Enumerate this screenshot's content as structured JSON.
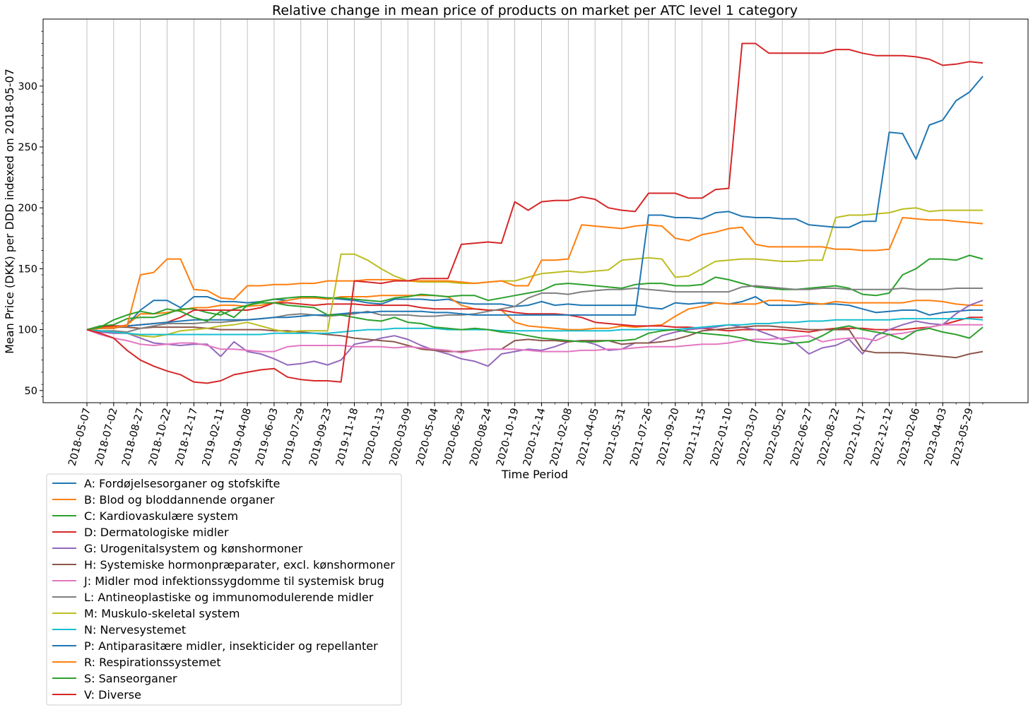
{
  "chart_data": {
    "type": "line",
    "title": "Relative change in mean price of products on market per ATC level 1 category",
    "xlabel": "Time Period",
    "ylabel": "Mean Price (DKK) per DDD indexed on 2018-05-07",
    "ylim": [
      40,
      355
    ],
    "yticks": [
      50,
      100,
      150,
      200,
      250,
      300
    ],
    "grid": "vertical",
    "legend_position": "below-left",
    "x_ticks": [
      "2018-05-07",
      "2018-07-02",
      "2018-08-27",
      "2018-10-22",
      "2018-12-17",
      "2019-02-11",
      "2019-04-08",
      "2019-06-03",
      "2019-07-29",
      "2019-09-23",
      "2019-11-18",
      "2020-01-13",
      "2020-03-09",
      "2020-05-04",
      "2020-06-29",
      "2020-08-24",
      "2020-10-19",
      "2020-12-14",
      "2021-02-08",
      "2021-04-05",
      "2021-05-31",
      "2021-07-26",
      "2021-09-20",
      "2021-11-15",
      "2022-01-10",
      "2022-03-07",
      "2022-05-02",
      "2022-06-27",
      "2022-08-22",
      "2022-10-17",
      "2022-12-12",
      "2023-02-06",
      "2023-04-03",
      "2023-05-29"
    ],
    "x_index": [
      0,
      2,
      4,
      6,
      8,
      10,
      12,
      14,
      16,
      18,
      20,
      22,
      24,
      26,
      28,
      30,
      32,
      34,
      36,
      38,
      40,
      42,
      44,
      46,
      48,
      50,
      52,
      54,
      56,
      58,
      60,
      62,
      64,
      66
    ],
    "x_points": [
      0,
      1,
      2,
      3,
      4,
      5,
      6,
      7,
      8,
      9,
      10,
      11,
      12,
      13,
      14,
      15,
      16,
      17,
      18,
      19,
      20,
      21,
      22,
      23,
      24,
      25,
      26,
      27,
      28,
      29,
      30,
      31,
      32,
      33,
      34,
      35,
      36,
      37,
      38,
      39,
      40,
      41,
      42,
      43,
      44,
      45,
      46,
      47,
      48,
      49,
      50,
      51,
      52,
      53,
      54,
      55,
      56,
      57,
      58,
      59,
      60,
      61,
      62,
      63,
      64,
      65,
      66,
      67
    ],
    "series": [
      {
        "name": "A: Fordøjelsesorganer og stofskifte",
        "color": "#1f77b4",
        "values": [
          100,
          101,
          101,
          104,
          116,
          124,
          124,
          118,
          127,
          127,
          123,
          123,
          122,
          123,
          125,
          124,
          126,
          127,
          126,
          125,
          124,
          122,
          121,
          125,
          125,
          125,
          124,
          125,
          122,
          121,
          121,
          121,
          119,
          120,
          123,
          120,
          121,
          120,
          120,
          120,
          120,
          120,
          118,
          117,
          122,
          121,
          122,
          122,
          121,
          123,
          127,
          120,
          120,
          120,
          121,
          121,
          121,
          120,
          117,
          114,
          115,
          116,
          116,
          112,
          114,
          115,
          116,
          116
        ]
      },
      {
        "name": "B: Blod og bloddannende organer",
        "color": "#ff7f0e",
        "values": [
          100,
          101,
          101,
          104,
          113,
          113,
          114,
          116,
          118,
          118,
          120,
          120,
          119,
          120,
          122,
          124,
          126,
          126,
          125,
          127,
          127,
          127,
          128,
          128,
          128,
          128,
          128,
          127,
          120,
          117,
          116,
          116,
          106,
          103,
          102,
          101,
          100,
          100,
          101,
          101,
          103,
          102,
          103,
          104,
          111,
          117,
          119,
          122,
          121,
          121,
          121,
          124,
          124,
          123,
          122,
          121,
          123,
          122,
          122,
          122,
          122,
          122,
          124,
          124,
          123,
          121,
          120,
          120
        ]
      },
      {
        "name": "C: Kardiovaskulære system",
        "color": "#2ca02c",
        "values": [
          100,
          103,
          104,
          109,
          110,
          110,
          113,
          117,
          117,
          114,
          112,
          117,
          120,
          123,
          125,
          126,
          127,
          127,
          126,
          126,
          125,
          124,
          123,
          126,
          127,
          129,
          128,
          127,
          128,
          128,
          124,
          126,
          128,
          130,
          132,
          137,
          138,
          137,
          136,
          135,
          134,
          137,
          138,
          138,
          136,
          136,
          137,
          143,
          141,
          138,
          135,
          134,
          133,
          133,
          134,
          135,
          136,
          134,
          129,
          128,
          130,
          145,
          150,
          158,
          158,
          157,
          161,
          158
        ]
      },
      {
        "name": "D: Dermatologiske midler",
        "color": "#d62728",
        "values": [
          100,
          102,
          103,
          103,
          104,
          105,
          106,
          110,
          116,
          116,
          116,
          116,
          116,
          118,
          122,
          122,
          121,
          120,
          121,
          121,
          121,
          120,
          120,
          120,
          120,
          118,
          117,
          117,
          117,
          117,
          116,
          116,
          114,
          113,
          113,
          113,
          112,
          110,
          106,
          105,
          104,
          103,
          103,
          103,
          102,
          102,
          101,
          100,
          99,
          100,
          100,
          100,
          100,
          99,
          98,
          100,
          101,
          101,
          101,
          100,
          100,
          100,
          101,
          102,
          104,
          107,
          110,
          110
        ]
      },
      {
        "name": "G: Urogenitalsystem og kønshormoner",
        "color": "#9467bd",
        "values": [
          100,
          98,
          97,
          97,
          93,
          89,
          88,
          87,
          88,
          88,
          78,
          90,
          82,
          80,
          76,
          71,
          72,
          74,
          71,
          75,
          88,
          90,
          93,
          95,
          92,
          87,
          83,
          80,
          76,
          74,
          70,
          80,
          82,
          84,
          83,
          86,
          90,
          91,
          88,
          83,
          84,
          89,
          89,
          95,
          98,
          100,
          101,
          102,
          104,
          102,
          100,
          96,
          92,
          89,
          80,
          85,
          87,
          92,
          80,
          95,
          100,
          104,
          107,
          105,
          104,
          113,
          120,
          124
        ]
      },
      {
        "name": "H: Systemiske hormonpræparater, excl. kønshormoner",
        "color": "#8c564b",
        "values": [
          100,
          101,
          102,
          102,
          101,
          102,
          102,
          102,
          102,
          101,
          100,
          100,
          100,
          100,
          99,
          99,
          98,
          97,
          96,
          95,
          93,
          92,
          91,
          90,
          87,
          84,
          83,
          82,
          82,
          83,
          84,
          84,
          91,
          92,
          91,
          91,
          90,
          91,
          91,
          91,
          88,
          89,
          89,
          90,
          92,
          95,
          99,
          100,
          101,
          102,
          103,
          103,
          102,
          101,
          100,
          100,
          100,
          100,
          83,
          81,
          81,
          81,
          80,
          79,
          78,
          77,
          80,
          82
        ]
      },
      {
        "name": "J: Midler mod infektionssygdomme til systemisk brug",
        "color": "#e377c2",
        "values": [
          100,
          96,
          93,
          91,
          88,
          87,
          88,
          89,
          89,
          87,
          84,
          84,
          83,
          82,
          82,
          86,
          87,
          87,
          87,
          87,
          86,
          86,
          86,
          85,
          86,
          85,
          84,
          83,
          81,
          83,
          84,
          84,
          84,
          83,
          82,
          82,
          82,
          83,
          83,
          84,
          84,
          85,
          86,
          86,
          86,
          87,
          88,
          88,
          89,
          91,
          92,
          92,
          93,
          94,
          95,
          90,
          92,
          93,
          93,
          91,
          96,
          97,
          99,
          102,
          104,
          104,
          104,
          104
        ]
      },
      {
        "name": "L: Antineoplastiske og immunomodulerende midler",
        "color": "#7f7f7f",
        "values": [
          100,
          99,
          99,
          98,
          101,
          103,
          105,
          105,
          105,
          106,
          106,
          107,
          108,
          109,
          110,
          112,
          113,
          112,
          111,
          112,
          113,
          115,
          112,
          112,
          112,
          111,
          111,
          112,
          112,
          113,
          115,
          117,
          119,
          126,
          130,
          130,
          129,
          131,
          132,
          133,
          133,
          134,
          133,
          132,
          131,
          131,
          131,
          131,
          131,
          135,
          136,
          135,
          134,
          133,
          133,
          134,
          134,
          133,
          133,
          133,
          133,
          134,
          133,
          133,
          133,
          134,
          134,
          134
        ]
      },
      {
        "name": "M: Muskulo-skeletal system",
        "color": "#bcbd22",
        "values": [
          100,
          99,
          98,
          97,
          95,
          94,
          96,
          99,
          100,
          101,
          103,
          104,
          106,
          103,
          100,
          98,
          99,
          99,
          99,
          162,
          162,
          157,
          150,
          144,
          140,
          139,
          139,
          139,
          138,
          138,
          139,
          140,
          140,
          143,
          146,
          147,
          148,
          147,
          148,
          149,
          157,
          158,
          159,
          158,
          143,
          144,
          150,
          156,
          157,
          158,
          158,
          157,
          156,
          156,
          157,
          157,
          192,
          194,
          194,
          195,
          196,
          199,
          200,
          197,
          198,
          198,
          198,
          198
        ]
      },
      {
        "name": "N: Nervesystemet",
        "color": "#17becf",
        "values": [
          100,
          99,
          98,
          97,
          96,
          96,
          96,
          96,
          96,
          96,
          96,
          96,
          96,
          96,
          97,
          97,
          97,
          97,
          97,
          98,
          99,
          100,
          100,
          101,
          101,
          101,
          101,
          100,
          100,
          100,
          100,
          99,
          99,
          99,
          99,
          99,
          99,
          99,
          99,
          99,
          100,
          100,
          100,
          100,
          100,
          101,
          102,
          103,
          104,
          104,
          105,
          105,
          106,
          106,
          107,
          107,
          108,
          108,
          108,
          108,
          108,
          109,
          109,
          109,
          109,
          109,
          109,
          108
        ]
      },
      {
        "name": "P: Antiparasitære midler, insekticider og repellanter",
        "color": "#1f77b4",
        "values": [
          100,
          101,
          102,
          103,
          104,
          105,
          106,
          107,
          108,
          108,
          108,
          108,
          108,
          109,
          110,
          110,
          111,
          112,
          112,
          113,
          114,
          114,
          115,
          115,
          115,
          115,
          114,
          114,
          113,
          112,
          112,
          112,
          112,
          112,
          112,
          112,
          112,
          112,
          112,
          112,
          112,
          112,
          194,
          194,
          192,
          192,
          191,
          196,
          197,
          193,
          192,
          192,
          191,
          191,
          186,
          185,
          184,
          184,
          189,
          189,
          262,
          261,
          240,
          268,
          272,
          288,
          295,
          308
        ]
      },
      {
        "name": "R: Respirationssystemet",
        "color": "#ff7f0e",
        "values": [
          100,
          101,
          102,
          103,
          145,
          147,
          158,
          158,
          133,
          132,
          126,
          125,
          136,
          136,
          137,
          137,
          138,
          138,
          140,
          140,
          140,
          141,
          141,
          141,
          140,
          140,
          140,
          140,
          139,
          138,
          139,
          140,
          136,
          136,
          157,
          157,
          158,
          186,
          185,
          184,
          183,
          185,
          186,
          185,
          175,
          173,
          178,
          180,
          183,
          184,
          170,
          168,
          168,
          168,
          168,
          168,
          166,
          166,
          165,
          165,
          166,
          192,
          191,
          190,
          190,
          189,
          188,
          187
        ]
      },
      {
        "name": "S: Sanseorganer",
        "color": "#2ca02c",
        "values": [
          100,
          102,
          108,
          112,
          115,
          113,
          117,
          115,
          110,
          107,
          115,
          110,
          120,
          122,
          122,
          120,
          119,
          118,
          112,
          112,
          110,
          108,
          107,
          110,
          106,
          105,
          102,
          101,
          100,
          101,
          100,
          98,
          97,
          95,
          93,
          92,
          91,
          90,
          90,
          91,
          91,
          92,
          97,
          99,
          100,
          98,
          97,
          96,
          95,
          93,
          90,
          89,
          88,
          89,
          90,
          95,
          101,
          103,
          100,
          98,
          96,
          92,
          99,
          101,
          98,
          96,
          93,
          102
        ]
      },
      {
        "name": "V: Diverse",
        "color": "#d62728",
        "values": [
          100,
          97,
          93,
          83,
          75,
          70,
          66,
          63,
          57,
          56,
          58,
          63,
          65,
          67,
          68,
          61,
          59,
          58,
          58,
          57,
          140,
          139,
          138,
          140,
          140,
          142,
          142,
          142,
          170,
          171,
          172,
          171,
          205,
          198,
          205,
          206,
          206,
          209,
          207,
          200,
          198,
          197,
          212,
          212,
          212,
          208,
          208,
          215,
          216,
          335,
          335,
          327,
          327,
          327,
          327,
          327,
          330,
          330,
          327,
          325,
          325,
          325,
          324,
          322,
          317,
          318,
          320,
          319
        ]
      }
    ]
  }
}
